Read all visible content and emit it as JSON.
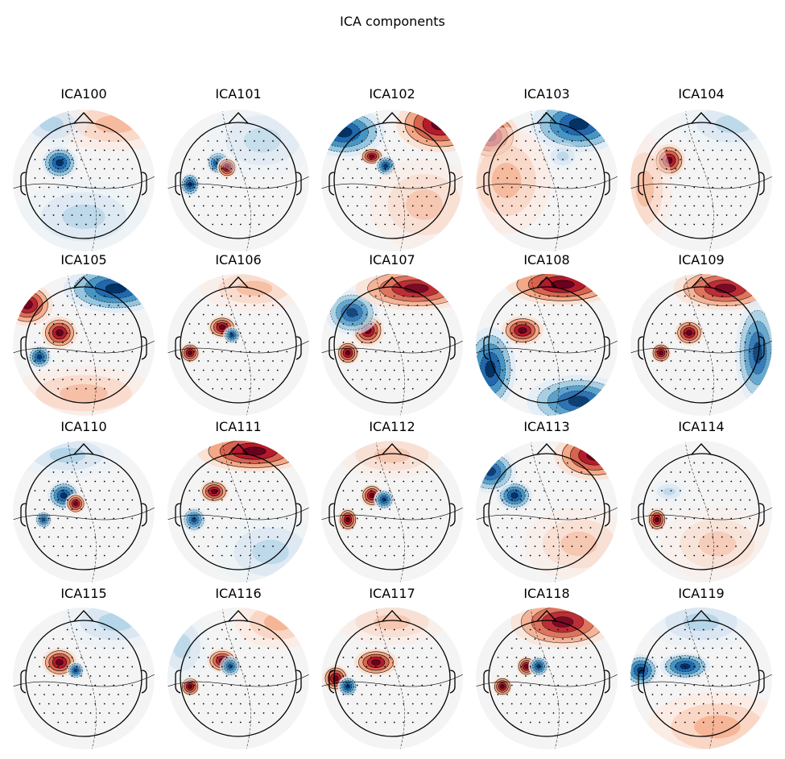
{
  "figure": {
    "title": "ICA components"
  },
  "chart_data": {
    "type": "heatmap",
    "title": "ICA components",
    "layout": {
      "rows": 4,
      "cols": 5
    },
    "colormap": {
      "negative": "#053061",
      "zero": "#f7f7f7",
      "positive": "#67001f"
    },
    "contours": true,
    "sensors_shown": true,
    "components": [
      {
        "label": "ICA100"
      },
      {
        "label": "ICA101"
      },
      {
        "label": "ICA102"
      },
      {
        "label": "ICA103"
      },
      {
        "label": "ICA104"
      },
      {
        "label": "ICA105"
      },
      {
        "label": "ICA106"
      },
      {
        "label": "ICA107"
      },
      {
        "label": "ICA108"
      },
      {
        "label": "ICA109"
      },
      {
        "label": "ICA110"
      },
      {
        "label": "ICA111"
      },
      {
        "label": "ICA112"
      },
      {
        "label": "ICA113"
      },
      {
        "label": "ICA114"
      },
      {
        "label": "ICA115"
      },
      {
        "label": "ICA116"
      },
      {
        "label": "ICA117"
      },
      {
        "label": "ICA118"
      },
      {
        "label": "ICA119"
      }
    ]
  }
}
